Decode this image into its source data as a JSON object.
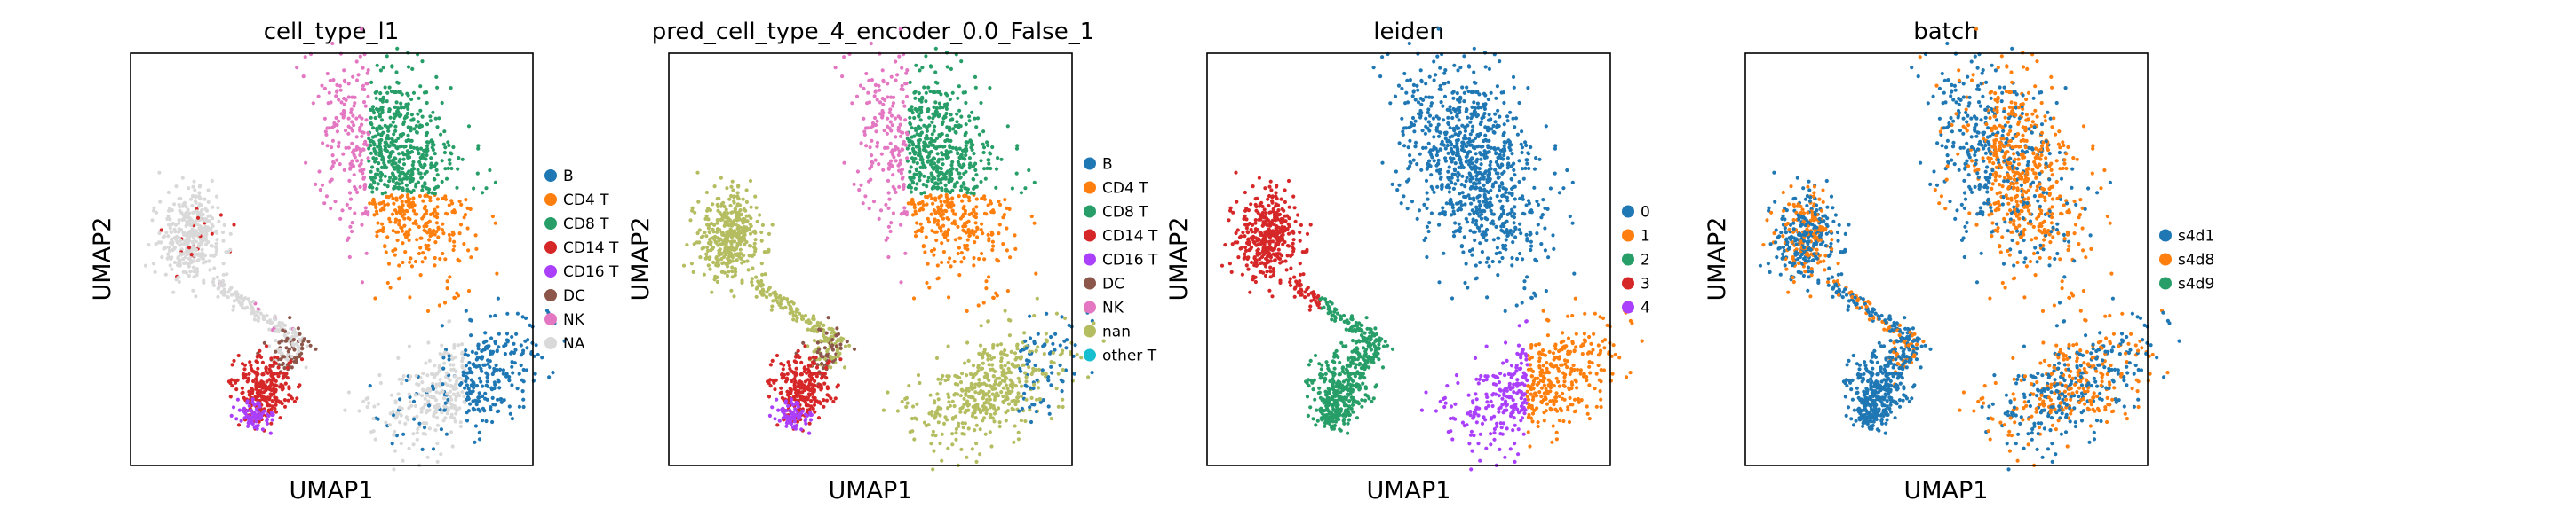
{
  "colors": {
    "blue": "#1f77b4",
    "orange": "#ff7f0e",
    "green": "#279e68",
    "red": "#d62728",
    "purple": "#aa40fc",
    "brown": "#8c564b",
    "pink": "#e377c2",
    "olive": "#b5bd61",
    "cyan": "#17becf",
    "gray": "#d9d9d9"
  },
  "chart_data": [
    {
      "type": "scatter",
      "title": "cell_type_l1",
      "xlabel": "UMAP1",
      "ylabel": "UMAP2",
      "grid": false,
      "legend_position": "right",
      "legend": [
        {
          "label": "B",
          "color": "#1f77b4"
        },
        {
          "label": "CD4 T",
          "color": "#ff7f0e"
        },
        {
          "label": "CD8 T",
          "color": "#279e68"
        },
        {
          "label": "CD14 T",
          "color": "#d62728"
        },
        {
          "label": "CD16 T",
          "color": "#aa40fc"
        },
        {
          "label": "DC",
          "color": "#8c564b"
        },
        {
          "label": "NK",
          "color": "#e377c2"
        },
        {
          "label": "NA",
          "color": "#d9d9d9"
        }
      ]
    },
    {
      "type": "scatter",
      "title": "pred_cell_type_4_encoder_0.0_False_1",
      "xlabel": "UMAP1",
      "ylabel": "UMAP2",
      "grid": false,
      "legend_position": "right",
      "legend": [
        {
          "label": "B",
          "color": "#1f77b4"
        },
        {
          "label": "CD4 T",
          "color": "#ff7f0e"
        },
        {
          "label": "CD8 T",
          "color": "#279e68"
        },
        {
          "label": "CD14 T",
          "color": "#d62728"
        },
        {
          "label": "CD16 T",
          "color": "#aa40fc"
        },
        {
          "label": "DC",
          "color": "#8c564b"
        },
        {
          "label": "NK",
          "color": "#e377c2"
        },
        {
          "label": "nan",
          "color": "#b5bd61"
        },
        {
          "label": "other T",
          "color": "#17becf"
        }
      ]
    },
    {
      "type": "scatter",
      "title": "leiden",
      "xlabel": "UMAP1",
      "ylabel": "UMAP2",
      "grid": false,
      "legend_position": "right",
      "legend": [
        {
          "label": "0",
          "color": "#1f77b4"
        },
        {
          "label": "1",
          "color": "#ff7f0e"
        },
        {
          "label": "2",
          "color": "#279e68"
        },
        {
          "label": "3",
          "color": "#d62728"
        },
        {
          "label": "4",
          "color": "#aa40fc"
        }
      ]
    },
    {
      "type": "scatter",
      "title": "batch",
      "xlabel": "UMAP1",
      "ylabel": "UMAP2",
      "grid": false,
      "legend_position": "right",
      "legend": [
        {
          "label": "s4d1",
          "color": "#1f77b4"
        },
        {
          "label": "s4d8",
          "color": "#ff7f0e"
        },
        {
          "label": "s4d9",
          "color": "#279e68"
        }
      ]
    }
  ]
}
